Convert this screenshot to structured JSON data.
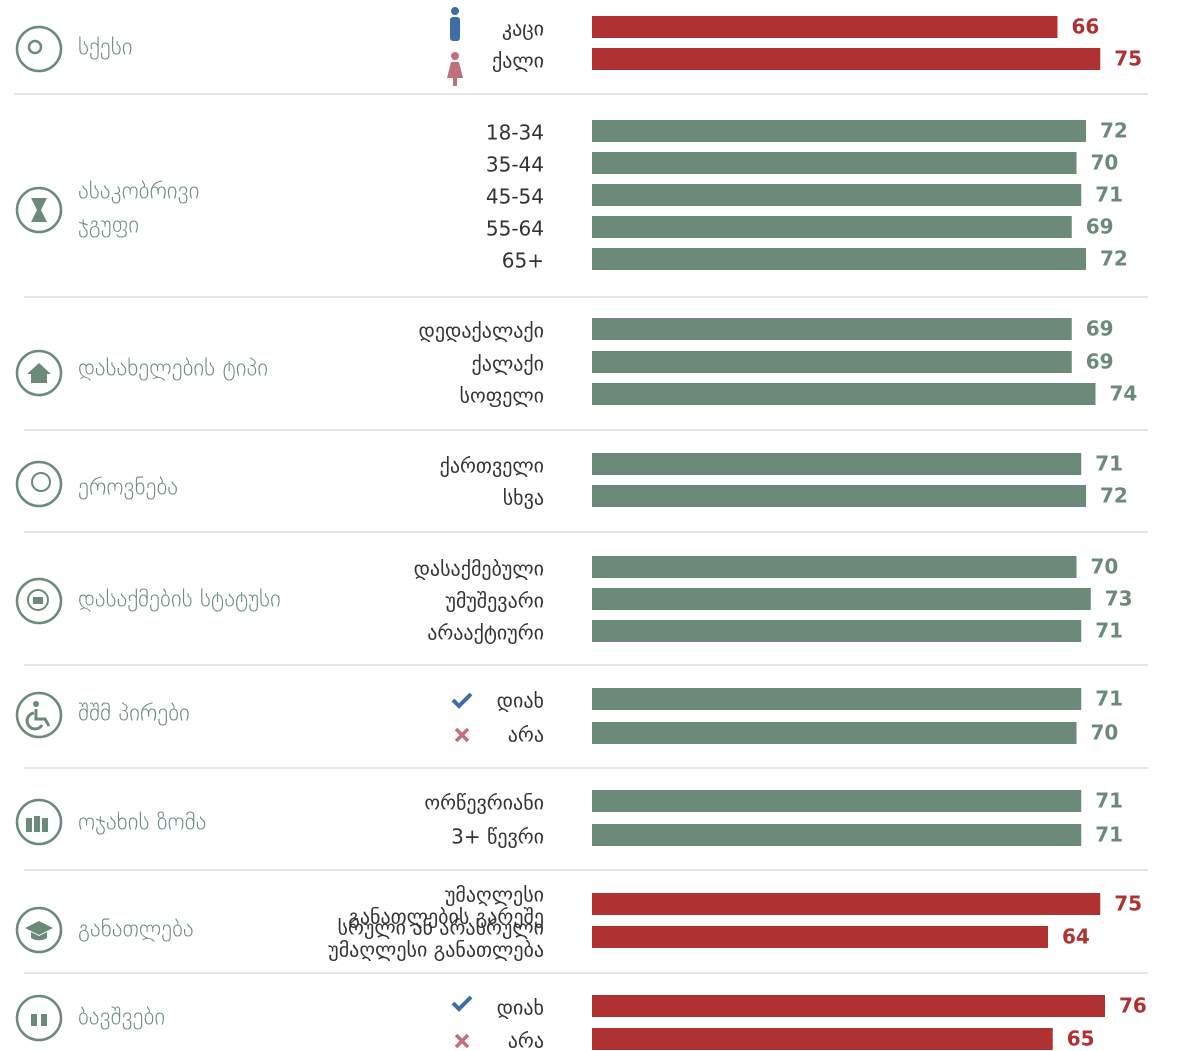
{
  "chart_data": {
    "type": "bar",
    "xlim": [
      -32,
      80
    ],
    "groups": [
      {
        "title": "სქესი",
        "color": "#b03131",
        "items": [
          {
            "label": "კაცი",
            "value": 66
          },
          {
            "label": "ქალი",
            "value": 75
          }
        ]
      },
      {
        "title": [
          "ასაკობრივი",
          "ჯგუფი"
        ],
        "color": "#6b8a7a",
        "items": [
          {
            "label": "18-34",
            "value": 72
          },
          {
            "label": "35-44",
            "value": 70
          },
          {
            "label": "45-54",
            "value": 71
          },
          {
            "label": "55-64",
            "value": 69
          },
          {
            "label": "65+",
            "value": 72
          }
        ]
      },
      {
        "title": "დასახელების ტიპი",
        "color": "#6b8a7a",
        "items": [
          {
            "label": "დედაქალაქი",
            "value": 69
          },
          {
            "label": "ქალაქი",
            "value": 69
          },
          {
            "label": "სოფელი",
            "value": 74
          }
        ]
      },
      {
        "title": "ეროვნება",
        "color": "#6b8a7a",
        "items": [
          {
            "label": "ქართველი",
            "value": 71
          },
          {
            "label": "სხვა",
            "value": 72
          }
        ]
      },
      {
        "title": "დასაქმების სტატუსი",
        "color": "#6b8a7a",
        "items": [
          {
            "label": "დასაქმებული",
            "value": 70
          },
          {
            "label": "უმუშევარი",
            "value": 73
          },
          {
            "label": "არააქტიური",
            "value": 71
          }
        ]
      },
      {
        "title": "შშმ პირები",
        "color": "#6b8a7a",
        "items": [
          {
            "label": "დიახ",
            "value": 71
          },
          {
            "label": "არა",
            "value": 70
          }
        ]
      },
      {
        "title": "ოჯახის ზომა",
        "color": "#6b8a7a",
        "items": [
          {
            "label": "ორწევრიანი",
            "value": 71
          },
          {
            "label": "3+ წევრი",
            "value": 71
          }
        ]
      },
      {
        "title": "განათლება",
        "color": "#b03131",
        "items": [
          {
            "label": [
              "უმაღლესი",
              "განათლების გარეშე"
            ],
            "value": 75
          },
          {
            "label": [
              "სრული ან არასრული",
              "უმაღლესი განათლება"
            ],
            "value": 64
          }
        ]
      },
      {
        "title": "ბავშვები",
        "color": "#b03131",
        "items": [
          {
            "label": "დიახ",
            "value": 76
          },
          {
            "label": "არა",
            "value": 65
          }
        ]
      }
    ]
  }
}
